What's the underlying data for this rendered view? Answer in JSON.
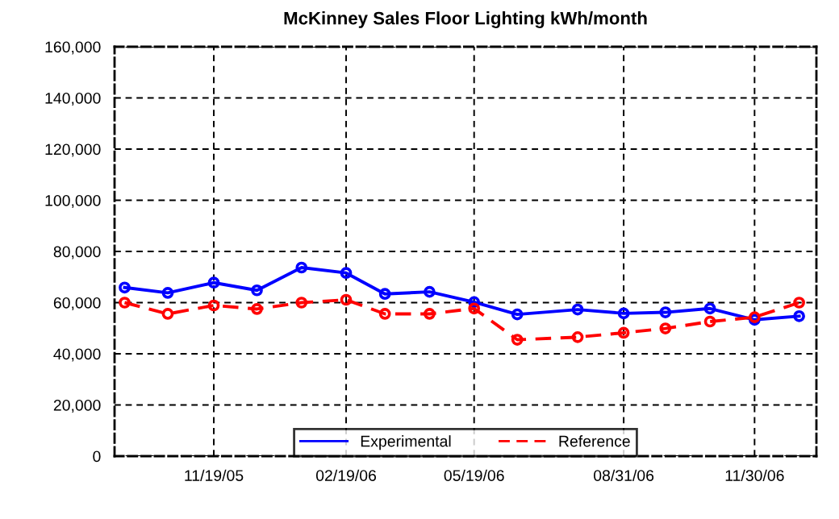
{
  "chart_data": {
    "type": "line",
    "title": "McKinney Sales Floor Lighting kWh/month",
    "x": [
      "2005-09-18",
      "2005-10-18",
      "2005-11-19",
      "2005-12-19",
      "2006-01-19",
      "2006-02-19",
      "2006-03-18",
      "2006-04-18",
      "2006-05-19",
      "2006-06-18",
      "2006-07-30",
      "2006-08-31",
      "2006-09-29",
      "2006-10-30",
      "2006-11-30",
      "2006-12-31"
    ],
    "series": [
      {
        "name": "Experimental",
        "color": "#0000ff",
        "line_style": "solid",
        "values": [
          65900,
          63800,
          67800,
          64800,
          73700,
          71600,
          63400,
          64200,
          60200,
          55400,
          57300,
          55800,
          56200,
          57700,
          53300,
          54700
        ]
      },
      {
        "name": "Reference",
        "color": "#ff0000",
        "line_style": "dashed",
        "values": [
          60000,
          55600,
          58900,
          57500,
          60000,
          61100,
          55600,
          55600,
          57700,
          45500,
          46500,
          48200,
          49900,
          52600,
          54300,
          60000
        ]
      }
    ],
    "xlim": [
      "2005-09-11",
      "2007-01-12"
    ],
    "xticks": [
      {
        "value": "2005-11-19",
        "label": "11/19/05"
      },
      {
        "value": "2006-02-19",
        "label": "02/19/06"
      },
      {
        "value": "2006-05-19",
        "label": "05/19/06"
      },
      {
        "value": "2006-08-31",
        "label": "08/31/06"
      },
      {
        "value": "2006-11-30",
        "label": "11/30/06"
      }
    ],
    "ylim": [
      0,
      160000
    ],
    "yticks": [
      {
        "value": 0,
        "label": "0"
      },
      {
        "value": 20000,
        "label": "20,000"
      },
      {
        "value": 40000,
        "label": "40,000"
      },
      {
        "value": 60000,
        "label": "60,000"
      },
      {
        "value": 80000,
        "label": "80,000"
      },
      {
        "value": 100000,
        "label": "100,000"
      },
      {
        "value": 120000,
        "label": "120,000"
      },
      {
        "value": 140000,
        "label": "140,000"
      },
      {
        "value": 160000,
        "label": "160,000"
      }
    ],
    "grid": true,
    "legend": "bottom",
    "marker": "circle"
  }
}
